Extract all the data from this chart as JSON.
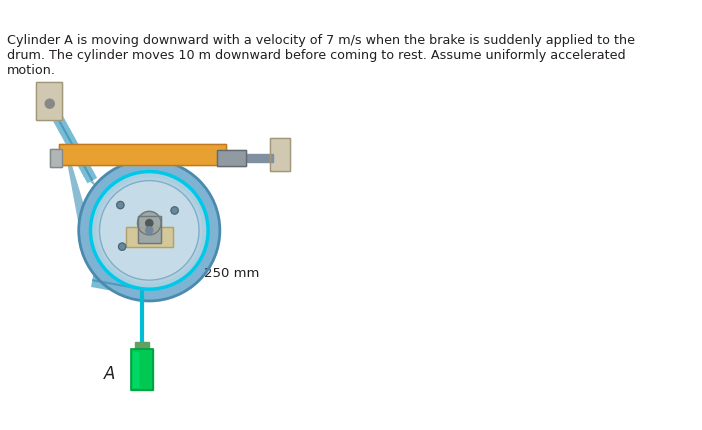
{
  "title_text": "Cylinder A is moving downward with a velocity of 7 m/s when the brake is suddenly applied to the\ndrum. The cylinder moves 10 m downward before coming to rest. Assume uniformly accelerated\nmotion.",
  "label_250mm": "250 mm",
  "label_A": "A",
  "bg_color": "#ffffff",
  "text_color": "#231f20",
  "drum_outer_color": "#7fb3d3",
  "drum_inner_color": "#a8cfe0",
  "drum_center_color": "#b8cfe0",
  "drum_rim_color": "#5a9cbf",
  "drum_face_color": "#c5dce8",
  "brake_pad_color": "#d4c89a",
  "brake_hub_color": "#9fa8a8",
  "rod_color": "#e8a030",
  "rod_cylinder_color": "#e8a030",
  "rod_end_color": "#c0c0c0",
  "rod_tip_color": "#8090a0",
  "wall_block_color": "#d0c8b0",
  "arm_color": "#7fb3d3",
  "cable_color": "#00bcd4",
  "cylinder_A_color": "#00c853",
  "cylinder_A_top_color": "#00e676",
  "pivot_color": "#909090",
  "figure_width": 7.02,
  "figure_height": 4.3,
  "dpi": 100
}
